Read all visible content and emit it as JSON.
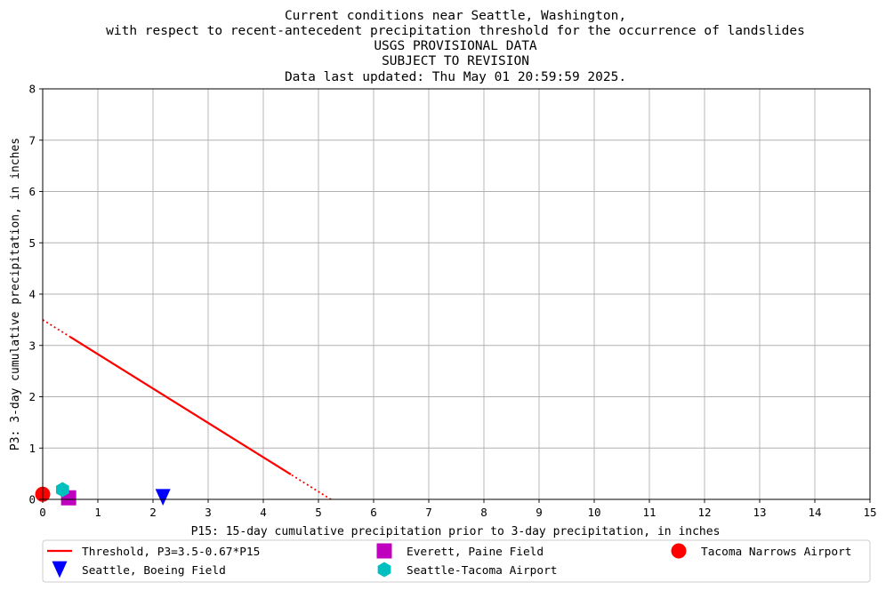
{
  "chart_data": {
    "type": "scatter",
    "title_lines": [
      "Current conditions near Seattle, Washington,",
      "with respect to recent-antecedent precipitation threshold for the occurrence of landslides",
      "USGS PROVISIONAL DATA",
      "SUBJECT TO REVISION",
      "Data last updated: Thu May 01 20:59:59 2025."
    ],
    "xlabel": "P15: 15-day cumulative precipitation prior to 3-day precipitation, in inches",
    "ylabel": "P3: 3-day cumulative precipitation, in inches",
    "xlim": [
      0,
      15
    ],
    "ylim": [
      0,
      8
    ],
    "xticks": [
      "0",
      "1",
      "2",
      "3",
      "4",
      "5",
      "6",
      "7",
      "8",
      "9",
      "10",
      "11",
      "12",
      "13",
      "14",
      "15"
    ],
    "yticks": [
      "0",
      "1",
      "2",
      "3",
      "4",
      "5",
      "6",
      "7",
      "8"
    ],
    "grid": true,
    "legend_position": "below",
    "threshold": {
      "name": "Threshold, P3=3.5-0.67*P15",
      "intercept": 3.5,
      "slope": -0.67,
      "solid_range": [
        0.5,
        4.5
      ],
      "color": "#ff0000"
    },
    "series": [
      {
        "name": "Seattle, Boeing Field",
        "marker": "triangle-down",
        "color": "#0000ff",
        "x": [
          2.18
        ],
        "y": [
          0.04
        ]
      },
      {
        "name": "Everett, Paine Field",
        "marker": "square",
        "color": "#bf00bf",
        "x": [
          0.47
        ],
        "y": [
          0.03
        ]
      },
      {
        "name": "Seattle-Tacoma Airport",
        "marker": "hexagon",
        "color": "#00bfbf",
        "x": [
          0.36
        ],
        "y": [
          0.19
        ]
      },
      {
        "name": "Tacoma Narrows Airport",
        "marker": "circle",
        "color": "#ff0000",
        "x": [
          0.0
        ],
        "y": [
          0.1
        ]
      }
    ]
  }
}
